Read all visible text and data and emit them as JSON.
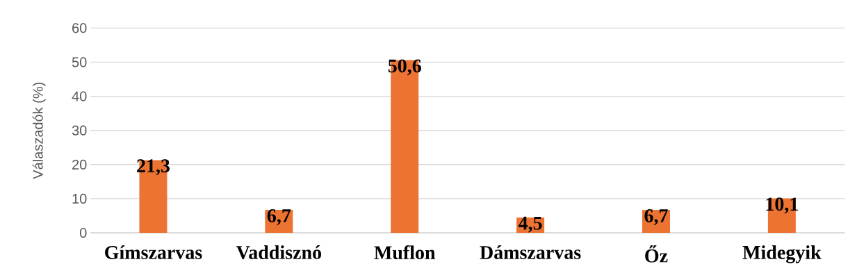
{
  "chart_data": {
    "type": "bar",
    "ylabel": "Válaszadók (%)",
    "categories": [
      "Gímszarvas",
      "Vaddisznó",
      "Muflon",
      "Dámszarvas",
      "Őz",
      "Midegyik"
    ],
    "values": [
      21.3,
      6.7,
      50.6,
      4.5,
      6.7,
      10.1
    ],
    "value_labels": [
      "21,3",
      "6,7",
      "50,6",
      "4,5",
      "6,7",
      "10,1"
    ],
    "color": "#ed7333",
    "ylim": [
      0,
      60
    ],
    "yticks": [
      0,
      10,
      20,
      30,
      40,
      50,
      60
    ],
    "grid": "y"
  }
}
